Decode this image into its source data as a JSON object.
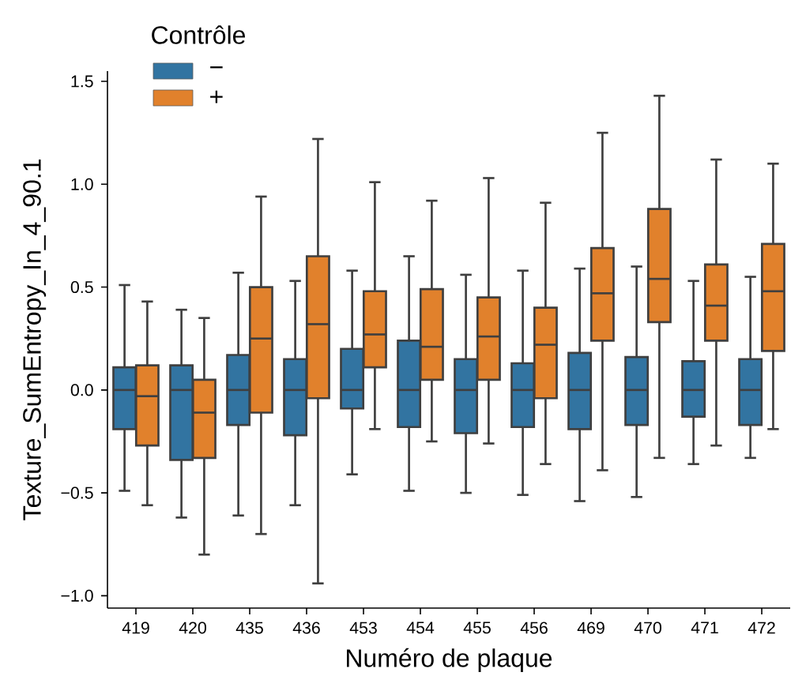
{
  "chart_data": {
    "type": "box",
    "xlabel": "Numéro de plaque",
    "ylabel": "Texture_SumEntropy_In_4_90.1",
    "legend_title": "Contrôle",
    "categories": [
      "419",
      "420",
      "435",
      "436",
      "453",
      "454",
      "455",
      "456",
      "469",
      "470",
      "471",
      "472"
    ],
    "ylim": [
      -1.06,
      1.55
    ],
    "yticks": [
      {
        "value": -1,
        "label": "−1.0"
      },
      {
        "value": -0.5,
        "label": "−0.5"
      },
      {
        "value": 0,
        "label": "0.0"
      },
      {
        "value": 0.5,
        "label": "0.5"
      },
      {
        "value": 1,
        "label": "1.0"
      },
      {
        "value": 1.5,
        "label": "1.5"
      }
    ],
    "grid": false,
    "legend": "top left",
    "series": [
      {
        "name": "−",
        "color": "#3274a1",
        "boxes": [
          {
            "low": -0.49,
            "q1": -0.19,
            "median": 0,
            "q3": 0.11,
            "high": 0.51
          },
          {
            "low": -0.62,
            "q1": -0.34,
            "median": 0,
            "q3": 0.12,
            "high": 0.39
          },
          {
            "low": -0.61,
            "q1": -0.17,
            "median": 0,
            "q3": 0.17,
            "high": 0.57
          },
          {
            "low": -0.56,
            "q1": -0.22,
            "median": 0,
            "q3": 0.15,
            "high": 0.53
          },
          {
            "low": -0.41,
            "q1": -0.09,
            "median": 0,
            "q3": 0.2,
            "high": 0.58
          },
          {
            "low": -0.49,
            "q1": -0.18,
            "median": 0,
            "q3": 0.24,
            "high": 0.65
          },
          {
            "low": -0.5,
            "q1": -0.21,
            "median": 0,
            "q3": 0.15,
            "high": 0.56
          },
          {
            "low": -0.51,
            "q1": -0.18,
            "median": 0,
            "q3": 0.13,
            "high": 0.58
          },
          {
            "low": -0.54,
            "q1": -0.19,
            "median": 0,
            "q3": 0.18,
            "high": 0.59
          },
          {
            "low": -0.52,
            "q1": -0.17,
            "median": 0,
            "q3": 0.16,
            "high": 0.6
          },
          {
            "low": -0.36,
            "q1": -0.13,
            "median": 0,
            "q3": 0.14,
            "high": 0.53
          },
          {
            "low": -0.33,
            "q1": -0.17,
            "median": 0,
            "q3": 0.15,
            "high": 0.55
          }
        ]
      },
      {
        "name": "+",
        "color": "#e1812c",
        "boxes": [
          {
            "low": -0.56,
            "q1": -0.27,
            "median": -0.03,
            "q3": 0.12,
            "high": 0.43
          },
          {
            "low": -0.8,
            "q1": -0.33,
            "median": -0.11,
            "q3": 0.05,
            "high": 0.35
          },
          {
            "low": -0.7,
            "q1": -0.11,
            "median": 0.25,
            "q3": 0.5,
            "high": 0.94
          },
          {
            "low": -0.94,
            "q1": -0.04,
            "median": 0.32,
            "q3": 0.65,
            "high": 1.22
          },
          {
            "low": -0.19,
            "q1": 0.11,
            "median": 0.27,
            "q3": 0.48,
            "high": 1.01
          },
          {
            "low": -0.25,
            "q1": 0.05,
            "median": 0.21,
            "q3": 0.49,
            "high": 0.92
          },
          {
            "low": -0.26,
            "q1": 0.05,
            "median": 0.26,
            "q3": 0.45,
            "high": 1.03
          },
          {
            "low": -0.36,
            "q1": -0.04,
            "median": 0.22,
            "q3": 0.4,
            "high": 0.91
          },
          {
            "low": -0.39,
            "q1": 0.24,
            "median": 0.47,
            "q3": 0.69,
            "high": 1.25
          },
          {
            "low": -0.33,
            "q1": 0.33,
            "median": 0.54,
            "q3": 0.88,
            "high": 1.43
          },
          {
            "low": -0.27,
            "q1": 0.24,
            "median": 0.41,
            "q3": 0.61,
            "high": 1.12
          },
          {
            "low": -0.19,
            "q1": 0.19,
            "median": 0.48,
            "q3": 0.71,
            "high": 1.1
          }
        ]
      }
    ]
  }
}
